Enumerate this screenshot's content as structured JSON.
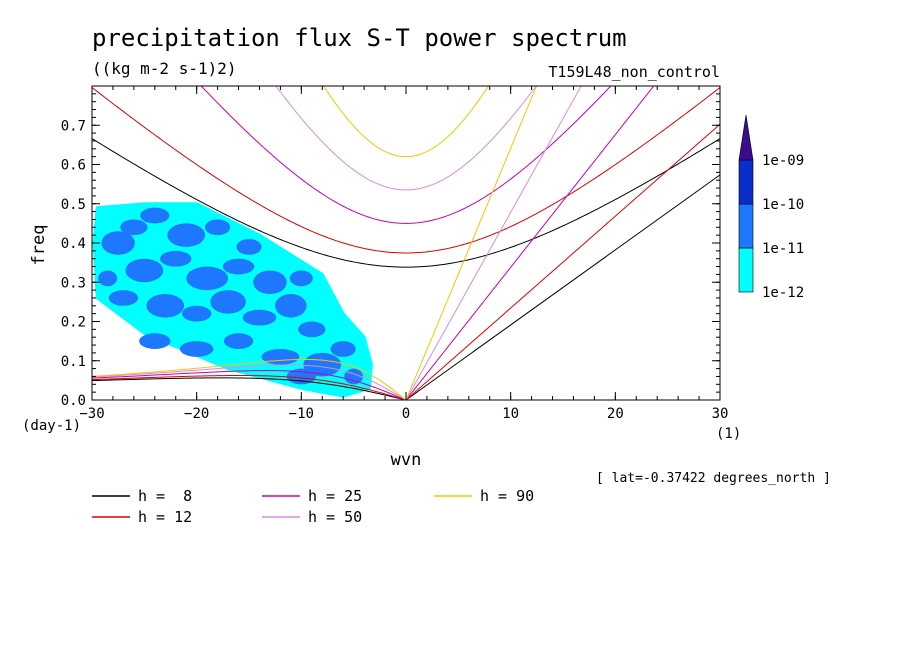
{
  "header": {
    "title": "precipitation flux S-T power spectrum",
    "units": "((kg m-2 s-1)2)",
    "run": "T159L48_non_control"
  },
  "info": {
    "lat_note": "[ lat=-0.37422 degrees_north ]"
  },
  "colors": {
    "axes": "#000000",
    "background": "#ffffff"
  },
  "chart_data": {
    "type": "contour",
    "xlabel": "wvn",
    "ylabel": "freq",
    "xunit": "(1)",
    "yunit": "(day-1)",
    "xlim": [
      -30,
      30
    ],
    "ylim": [
      0,
      0.8
    ],
    "xticks": [
      -30,
      -20,
      -10,
      0,
      10,
      20,
      30
    ],
    "xtick_labels": [
      "−30",
      "−20",
      "−10",
      "0",
      "10",
      "20",
      "30"
    ],
    "yticks": [
      0,
      0.1,
      0.2,
      0.3,
      0.4,
      0.5,
      0.6,
      0.7
    ],
    "ytick_labels": [
      "0.0",
      "0.1",
      "0.2",
      "0.3",
      "0.4",
      "0.5",
      "0.6",
      "0.7"
    ],
    "contour_levels": [
      {
        "label": "1e-12",
        "color": "#00ffff"
      },
      {
        "label": "1e-11",
        "color": "#1e78ff"
      },
      {
        "label": "1e-10",
        "color": "#0a2dcc"
      },
      {
        "label": "1e-09",
        "color": "#3c0a8c"
      }
    ],
    "dispersion_curves": [
      {
        "label": "h =  8",
        "h": 8,
        "color": "#000000"
      },
      {
        "label": "h = 12",
        "h": 12,
        "color": "#e00000"
      },
      {
        "label": "h = 25",
        "h": 25,
        "color": "#c800b4"
      },
      {
        "label": "h = 50",
        "h": 50,
        "color": "#dc8cdc"
      },
      {
        "label": "h = 90",
        "h": 90,
        "color": "#f0c800"
      }
    ],
    "shaded_region": {
      "cyan_outline": [
        [
          -29.5,
          0.49
        ],
        [
          -25,
          0.5
        ],
        [
          -20,
          0.5
        ],
        [
          -17,
          0.46
        ],
        [
          -14,
          0.42
        ],
        [
          -11,
          0.37
        ],
        [
          -8,
          0.32
        ],
        [
          -6,
          0.22
        ],
        [
          -4,
          0.16
        ],
        [
          -3.3,
          0.09
        ],
        [
          -3.5,
          0.03
        ],
        [
          -6,
          0.01
        ],
        [
          -10,
          0.03
        ],
        [
          -17,
          0.08
        ],
        [
          -25,
          0.17
        ],
        [
          -29.5,
          0.26
        ],
        [
          -29.8,
          0.4
        ]
      ],
      "blue_patches": [
        [
          -27.5,
          0.4,
          1.6,
          0.03
        ],
        [
          -24,
          0.47,
          1.4,
          0.02
        ],
        [
          -21,
          0.42,
          1.8,
          0.03
        ],
        [
          -18,
          0.44,
          1.2,
          0.02
        ],
        [
          -25,
          0.33,
          1.8,
          0.03
        ],
        [
          -22,
          0.36,
          1.5,
          0.02
        ],
        [
          -19,
          0.31,
          2.0,
          0.03
        ],
        [
          -16,
          0.34,
          1.5,
          0.02
        ],
        [
          -13,
          0.3,
          1.6,
          0.03
        ],
        [
          -27,
          0.26,
          1.4,
          0.02
        ],
        [
          -23,
          0.24,
          1.8,
          0.03
        ],
        [
          -20,
          0.22,
          1.4,
          0.02
        ],
        [
          -17,
          0.25,
          1.7,
          0.03
        ],
        [
          -14,
          0.21,
          1.6,
          0.02
        ],
        [
          -11,
          0.24,
          1.5,
          0.03
        ],
        [
          -9,
          0.18,
          1.3,
          0.02
        ],
        [
          -24,
          0.15,
          1.5,
          0.02
        ],
        [
          -20,
          0.13,
          1.6,
          0.02
        ],
        [
          -16,
          0.15,
          1.4,
          0.02
        ],
        [
          -12,
          0.11,
          1.8,
          0.02
        ],
        [
          -8,
          0.09,
          1.8,
          0.03
        ],
        [
          -6,
          0.13,
          1.2,
          0.02
        ],
        [
          -5,
          0.06,
          0.9,
          0.02
        ],
        [
          -10,
          0.06,
          1.4,
          0.02
        ],
        [
          -26,
          0.44,
          1.3,
          0.02
        ],
        [
          -15,
          0.39,
          1.2,
          0.02
        ],
        [
          -10,
          0.31,
          1.1,
          0.02
        ],
        [
          -28.5,
          0.31,
          0.9,
          0.02
        ]
      ]
    }
  }
}
